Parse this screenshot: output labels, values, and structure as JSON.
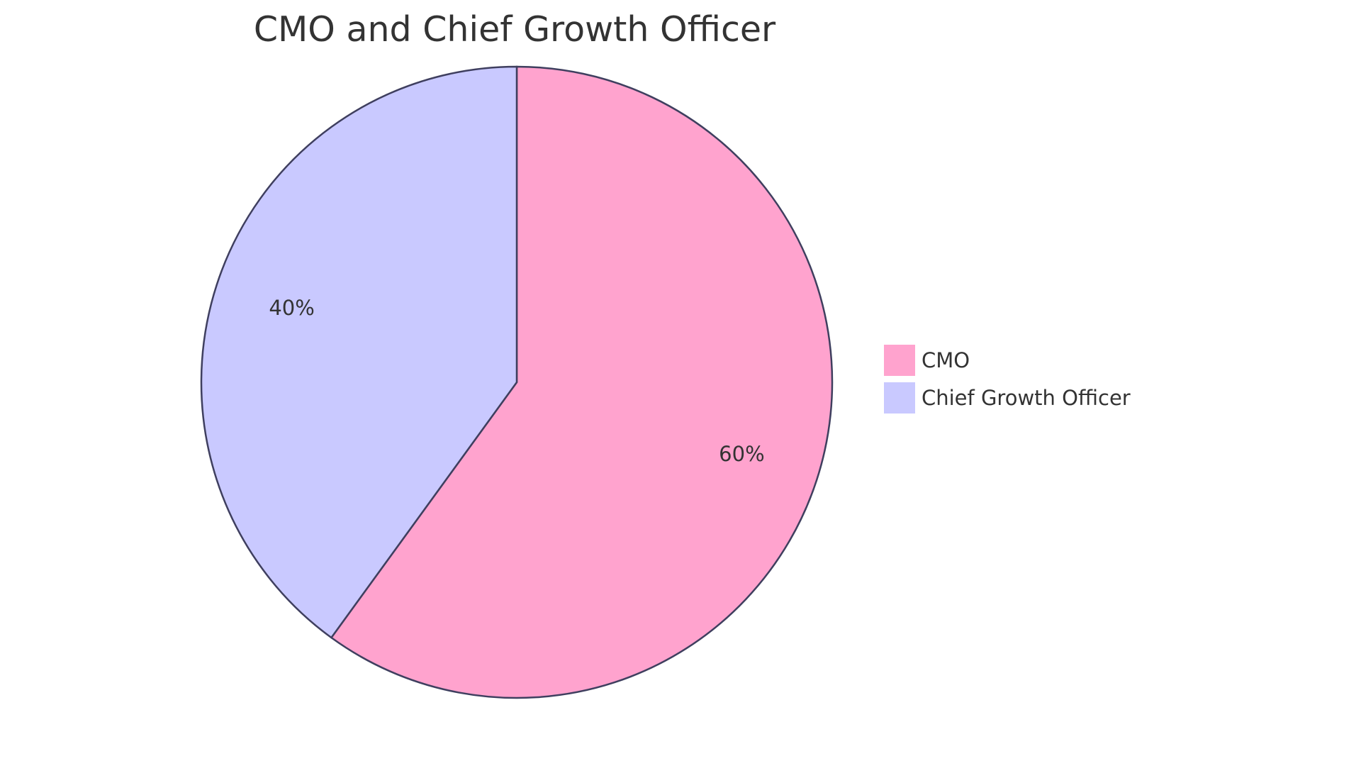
{
  "chart_data": {
    "type": "pie",
    "title": "CMO and Chief Growth Officer",
    "categories": [
      "CMO",
      "Chief Growth Officer"
    ],
    "values": [
      60,
      40
    ],
    "labels": [
      "60%",
      "40%"
    ],
    "colors": [
      "#FFA3CE",
      "#C9C9FF"
    ],
    "stroke_color": "#3F3F5F",
    "legend_position": "right"
  }
}
